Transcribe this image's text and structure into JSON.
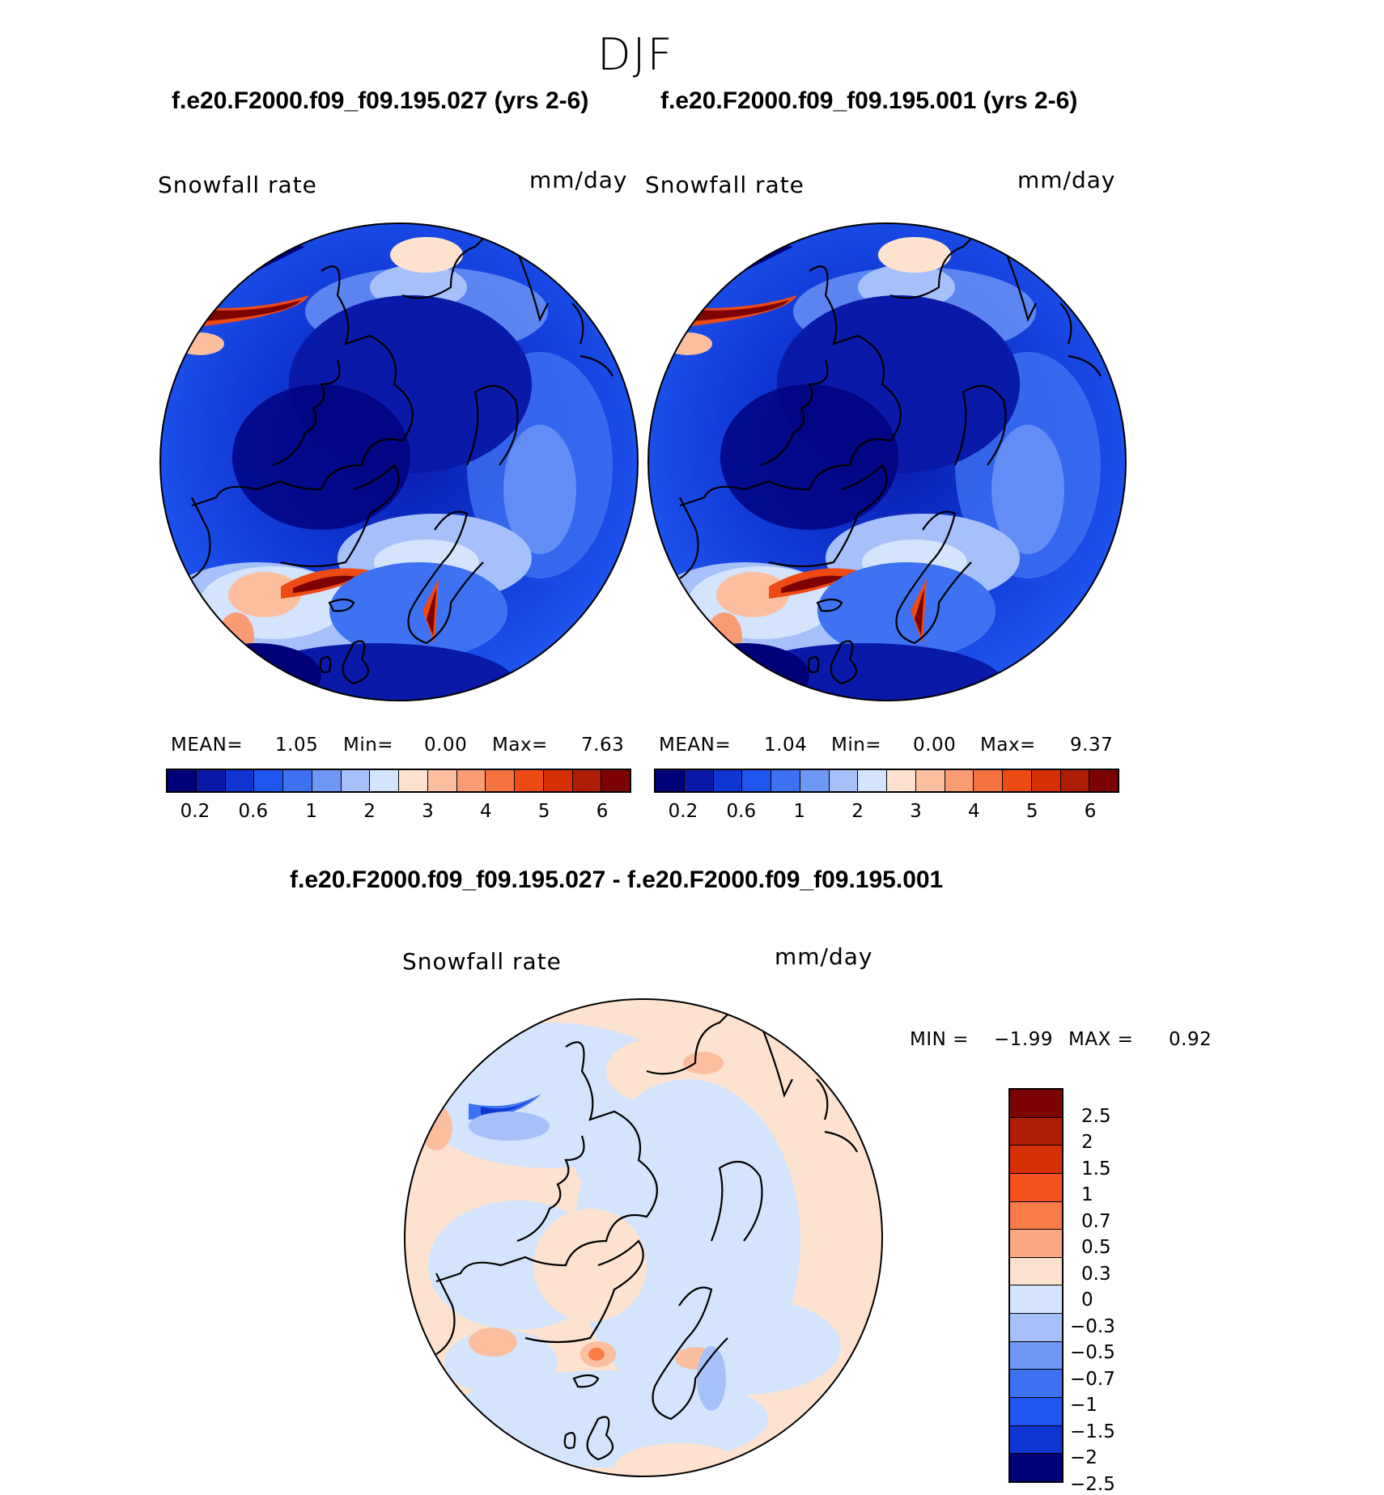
{
  "season": "DJF",
  "panels": {
    "left": {
      "case_title": "f.e20.F2000.f09_f09.195.027 (yrs 2-6)",
      "variable": "Snowfall rate",
      "units": "mm/day",
      "mean_label": "MEAN=",
      "mean": "1.05",
      "min_label": "Min=",
      "min": "0.00",
      "max_label": "Max=",
      "max": "7.63"
    },
    "right": {
      "case_title": "f.e20.F2000.f09_f09.195.001 (yrs 2-6)",
      "variable": "Snowfall rate",
      "units": "mm/day",
      "mean_label": "MEAN=",
      "mean": "1.04",
      "min_label": "Min=",
      "min": "0.00",
      "max_label": "Max=",
      "max": "9.37"
    },
    "diff": {
      "title": "f.e20.F2000.f09_f09.195.027 - f.e20.F2000.f09_f09.195.001",
      "variable": "Snowfall rate",
      "units": "mm/day",
      "min_label": "MIN =",
      "min": "−1.99",
      "max_label": "MAX =",
      "max": "0.92"
    }
  },
  "abs_colorbar": {
    "colors": [
      "#00007a",
      "#0a1aa8",
      "#0f35d2",
      "#1f55f0",
      "#3f72f2",
      "#6f97f6",
      "#a6c0fa",
      "#d4e4fc",
      "#fde2cf",
      "#fbbfa0",
      "#f99b73",
      "#f4733e",
      "#ee4a14",
      "#d62f06",
      "#b01d05",
      "#7d0202"
    ],
    "ticks": [
      "0.2",
      "0.6",
      "1",
      "2",
      "3",
      "4",
      "5",
      "6"
    ]
  },
  "diff_colorbar": {
    "colors": [
      "#7d0202",
      "#b01d05",
      "#d62f06",
      "#f4521c",
      "#f97c48",
      "#fba784",
      "#fde2cf",
      "#d4e4fc",
      "#a6c0fa",
      "#6f97f6",
      "#3f72f2",
      "#1f55f0",
      "#0f35d2",
      "#00007a"
    ],
    "ticks": [
      "2.5",
      "2",
      "1.5",
      "1",
      "0.7",
      "0.5",
      "0.3",
      "0",
      "−0.3",
      "−0.5",
      "−0.7",
      "−1",
      "−1.5",
      "−2",
      "−2.5"
    ]
  }
}
